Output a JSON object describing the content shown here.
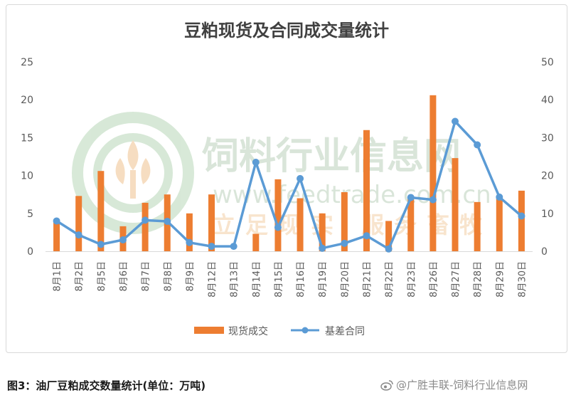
{
  "caption": "图3：油厂豆粕成交数量统计(单位：万吨)",
  "credit": "@广胜丰联-饲料行业信息网",
  "credit_icon": "weibo-icon",
  "chart_data": {
    "type": "bar+line",
    "title": "豆粕现货及合同成交量统计",
    "categories": [
      "8月1日",
      "8月2日",
      "8月5日",
      "8月6日",
      "8月7日",
      "8月8日",
      "8月9日",
      "8月12日",
      "8月13日",
      "8月14日",
      "8月15日",
      "8月16日",
      "8月19日",
      "8月20日",
      "8月21日",
      "8月22日",
      "8月23日",
      "8月26日",
      "8月27日",
      "8月28日",
      "8月29日",
      "8月30日"
    ],
    "series": [
      {
        "name": "现货成交",
        "type": "bar",
        "axis": "left",
        "color": "#ed7d31",
        "values": [
          3.8,
          7.3,
          10.6,
          3.3,
          6.4,
          7.5,
          5.0,
          7.5,
          0,
          2.3,
          9.5,
          7.0,
          5.0,
          7.8,
          16.0,
          4.0,
          7.0,
          20.6,
          12.3,
          6.5,
          7.0,
          8.0
        ]
      },
      {
        "name": "基差合同",
        "type": "line",
        "axis": "right",
        "color": "#5b9bd5",
        "values": [
          8.0,
          4.3,
          1.8,
          3.0,
          8.2,
          7.9,
          2.3,
          1.3,
          1.3,
          23.5,
          6.3,
          19.2,
          0.8,
          2.1,
          4.1,
          0.6,
          14.2,
          13.6,
          34.3,
          28.1,
          14.3,
          9.3
        ]
      }
    ],
    "y_left": {
      "min": 0,
      "max": 25,
      "ticks": [
        0,
        5,
        10,
        15,
        20,
        25
      ]
    },
    "y_right": {
      "min": 0,
      "max": 50,
      "ticks": [
        0,
        10,
        20,
        30,
        40,
        50
      ]
    },
    "legend_position": "bottom",
    "grid": false,
    "watermark": {
      "main": "饲料行业信息网",
      "url": "www.feedtrade.com.cn",
      "slogan": "立足现实 服务畜牧"
    }
  }
}
